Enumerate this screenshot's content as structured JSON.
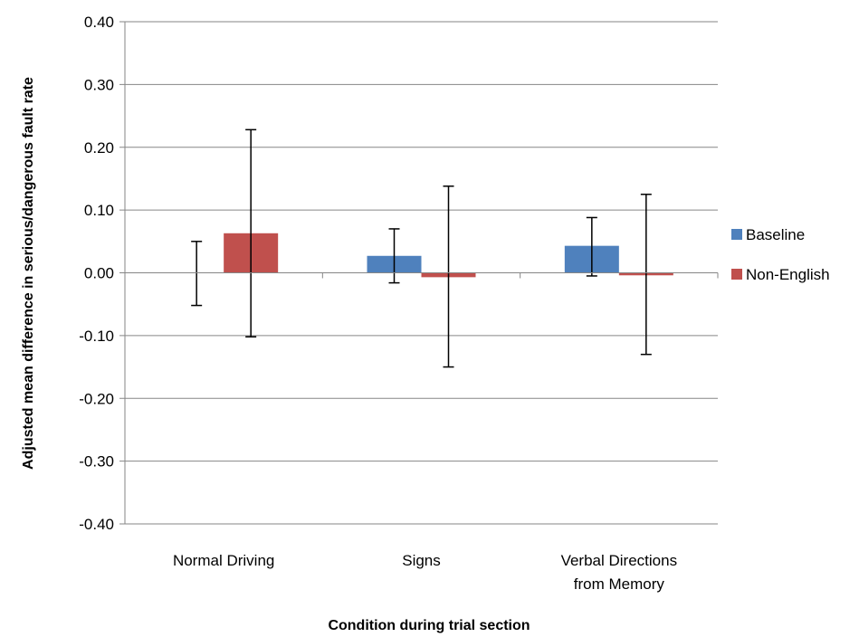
{
  "chart_data": {
    "type": "bar",
    "title": "",
    "xlabel": "Condition during trial section",
    "ylabel": "Adjusted mean difference in serious/dangerous  fault rate",
    "ylim": [
      -0.4,
      0.4
    ],
    "yticks": [
      "0.40",
      "0.30",
      "0.20",
      "0.10",
      "0.00",
      "-0.10",
      "-0.20",
      "-0.30",
      "-0.40"
    ],
    "ytick_values": [
      0.4,
      0.3,
      0.2,
      0.1,
      0.0,
      -0.1,
      -0.2,
      -0.3,
      -0.4
    ],
    "grid": true,
    "legend_position": "right",
    "categories": [
      [
        "Normal Driving"
      ],
      [
        "Signs"
      ],
      [
        "Verbal Directions",
        "from Memory"
      ]
    ],
    "series": [
      {
        "name": "Baseline",
        "color": "#4f81bd",
        "values": [
          0.0,
          0.027,
          0.043
        ],
        "err_low": [
          -0.052,
          -0.016,
          -0.005
        ],
        "err_high": [
          0.05,
          0.07,
          0.088
        ]
      },
      {
        "name": "Non-English",
        "color": "#c0504d",
        "values": [
          0.063,
          -0.007,
          -0.004
        ],
        "err_low": [
          -0.102,
          -0.15,
          -0.13
        ],
        "err_high": [
          0.228,
          0.138,
          0.125
        ]
      }
    ]
  }
}
